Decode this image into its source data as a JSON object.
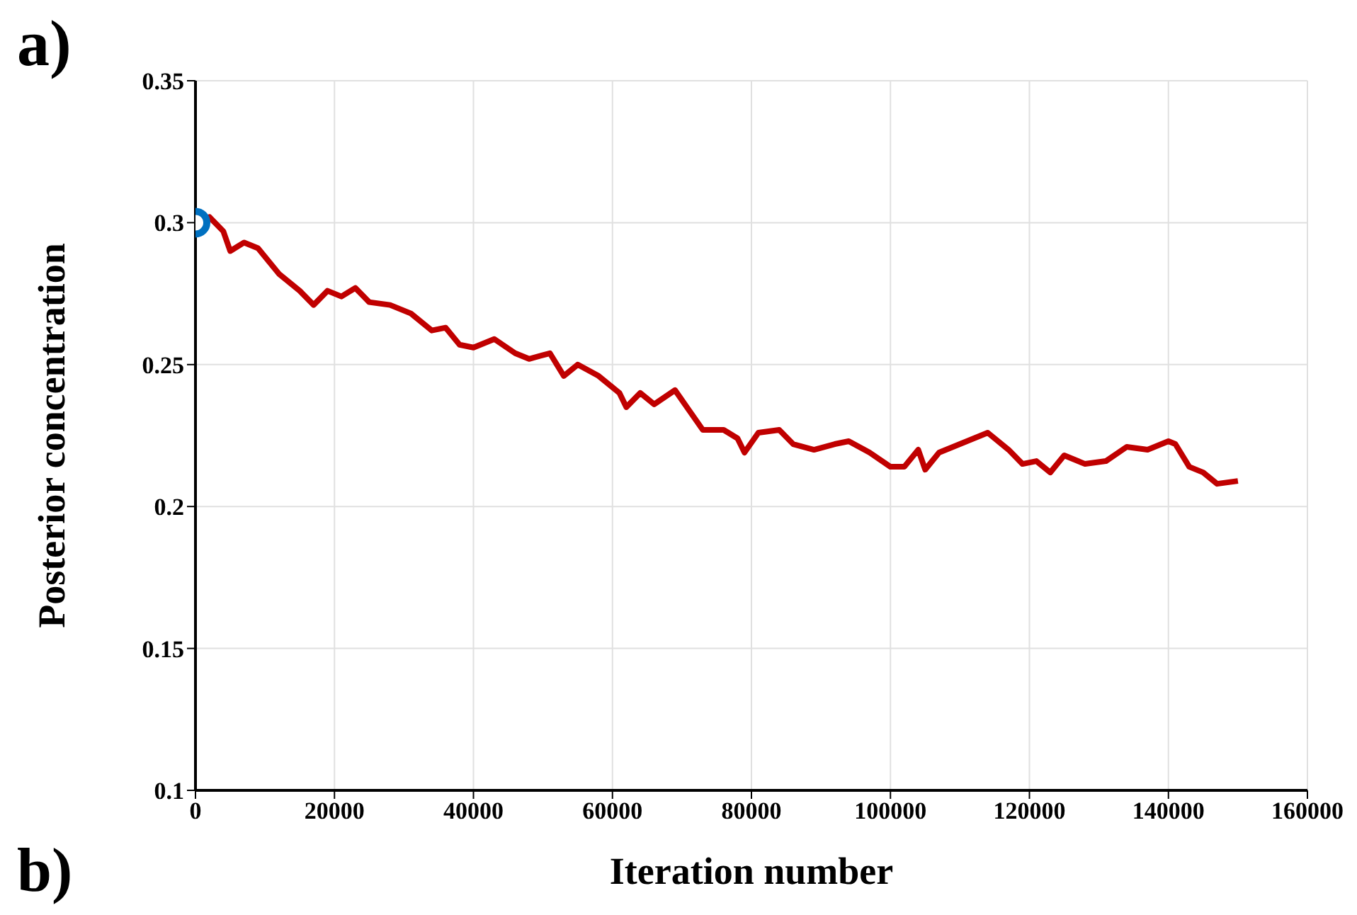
{
  "chart_data": {
    "type": "line",
    "xlabel": "Iteration number",
    "ylabel": "Posterior concentration",
    "annotations": [
      "a)",
      "b)"
    ],
    "xlim": [
      0,
      160000
    ],
    "xticks": [
      0,
      20000,
      40000,
      60000,
      80000,
      100000,
      120000,
      140000,
      160000
    ],
    "ylim": [
      0.1,
      0.35
    ],
    "yticks": [
      0.1,
      0.15,
      0.2,
      0.25,
      0.3,
      0.35
    ],
    "grid": true,
    "legend": false,
    "marker": "none",
    "line_style": "solid",
    "series": [
      {
        "type": "line",
        "color": "#c00000",
        "x": [
          0,
          2000,
          4000,
          5000,
          7000,
          9000,
          12000,
          15000,
          17000,
          19000,
          21000,
          23000,
          25000,
          28000,
          31000,
          34000,
          36000,
          38000,
          40000,
          43000,
          46000,
          48000,
          51000,
          53000,
          55000,
          58000,
          61000,
          62000,
          64000,
          66000,
          69000,
          71000,
          73000,
          76000,
          78000,
          79000,
          81000,
          84000,
          86000,
          89000,
          92000,
          94000,
          97000,
          100000,
          102000,
          104000,
          105000,
          107000,
          110000,
          113000,
          114000,
          117000,
          119000,
          121000,
          123000,
          125000,
          128000,
          131000,
          134000,
          137000,
          140000,
          141000,
          143000,
          145000,
          147000,
          150000
        ],
        "values": [
          0.3,
          0.302,
          0.297,
          0.29,
          0.293,
          0.291,
          0.282,
          0.276,
          0.271,
          0.276,
          0.274,
          0.277,
          0.272,
          0.271,
          0.268,
          0.262,
          0.263,
          0.257,
          0.256,
          0.259,
          0.254,
          0.252,
          0.254,
          0.246,
          0.25,
          0.246,
          0.24,
          0.235,
          0.24,
          0.236,
          0.241,
          0.234,
          0.227,
          0.227,
          0.224,
          0.219,
          0.226,
          0.227,
          0.222,
          0.22,
          0.222,
          0.223,
          0.219,
          0.214,
          0.214,
          0.22,
          0.213,
          0.219,
          0.222,
          0.225,
          0.226,
          0.22,
          0.215,
          0.216,
          0.212,
          0.218,
          0.215,
          0.216,
          0.221,
          0.22,
          0.223,
          0.222,
          0.214,
          0.212,
          0.208,
          0.209
        ]
      },
      {
        "type": "scatter",
        "color": "#0070c0",
        "marker": "circle",
        "x": [
          0
        ],
        "values": [
          0.3
        ]
      }
    ]
  }
}
